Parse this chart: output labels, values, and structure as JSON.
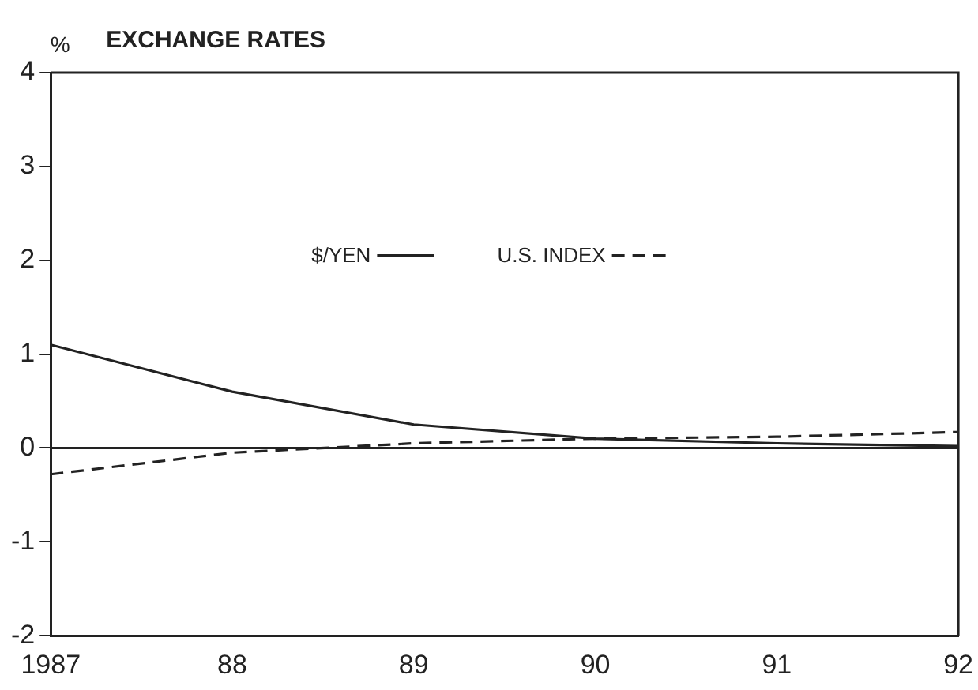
{
  "chart_data": {
    "type": "line",
    "title": "EXCHANGE RATES",
    "ylabel": "%",
    "x": [
      1987,
      1988,
      1989,
      1990,
      1991,
      1992
    ],
    "series": [
      {
        "name": "$/YEN",
        "color": "#222222",
        "line_style": "solid",
        "values": [
          1.1,
          0.6,
          0.25,
          0.1,
          0.05,
          0.02
        ]
      },
      {
        "name": "U.S. INDEX",
        "color": "#222222",
        "line_style": "dashed",
        "values": [
          -0.28,
          -0.05,
          0.05,
          0.1,
          0.12,
          0.17
        ]
      }
    ],
    "xlim": [
      1987,
      1992
    ],
    "xticks": [
      {
        "value": 1987,
        "label": "1987"
      },
      {
        "value": 1988,
        "label": "88"
      },
      {
        "value": 1989,
        "label": "89"
      },
      {
        "value": 1990,
        "label": "90"
      },
      {
        "value": 1991,
        "label": "91"
      },
      {
        "value": 1992,
        "label": "92"
      }
    ],
    "ylim": [
      -2,
      4
    ],
    "yticks": [
      -2,
      -1,
      0,
      1,
      2,
      3,
      4
    ],
    "ref_lines": [
      {
        "axis": "y",
        "value": 0,
        "color": "#222222"
      }
    ],
    "grid": false,
    "legend": "top",
    "marker": "none"
  }
}
